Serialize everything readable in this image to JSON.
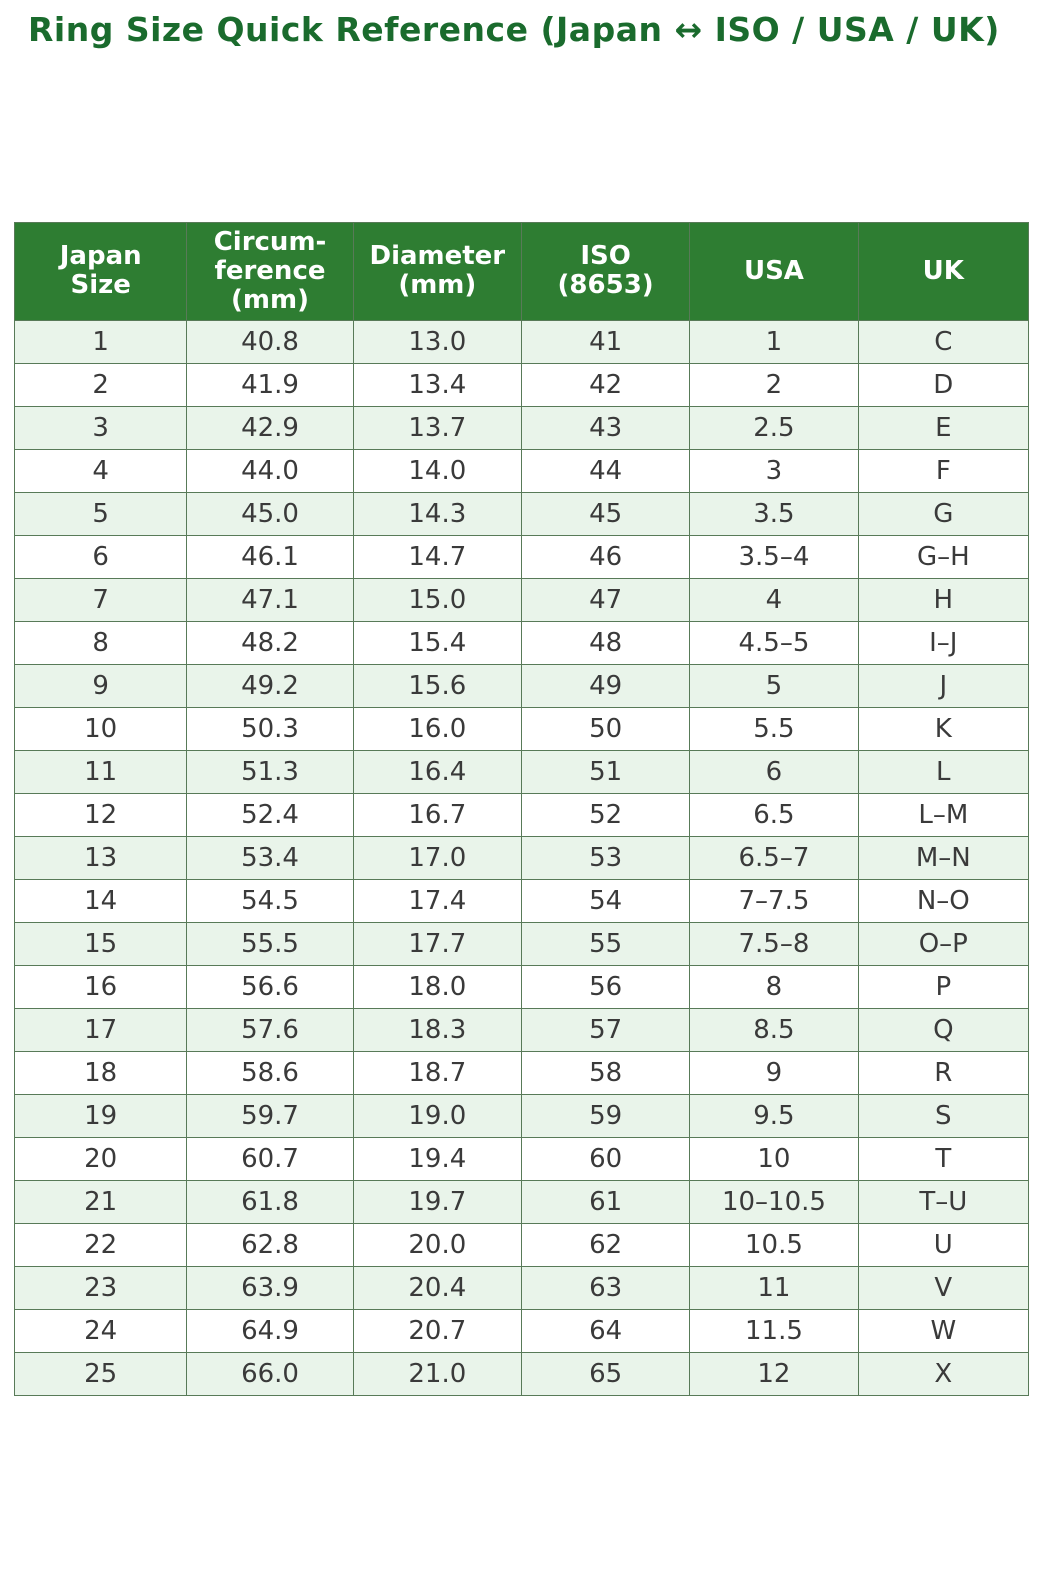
{
  "page": {
    "title": "Ring Size Quick Reference (Japan ↔ ISO / USA / UK)"
  },
  "colors": {
    "title_text": "#1a6b2d",
    "header_bg": "#2e7d32",
    "header_text": "#ffffff",
    "row_alt_bg": "#e9f4ea",
    "row_bg": "#ffffff",
    "border": "#587a58",
    "cell_text": "#3a3a3a"
  },
  "chart_data": {
    "type": "table",
    "title": "Ring Size Quick Reference (Japan ↔ ISO / USA / UK)",
    "columns": [
      "Japan\nSize",
      "Circum-\nference\n(mm)",
      "Diameter\n(mm)",
      "ISO\n(8653)",
      "USA",
      "UK"
    ],
    "rows": [
      [
        "1",
        "40.8",
        "13.0",
        "41",
        "1",
        "C"
      ],
      [
        "2",
        "41.9",
        "13.4",
        "42",
        "2",
        "D"
      ],
      [
        "3",
        "42.9",
        "13.7",
        "43",
        "2.5",
        "E"
      ],
      [
        "4",
        "44.0",
        "14.0",
        "44",
        "3",
        "F"
      ],
      [
        "5",
        "45.0",
        "14.3",
        "45",
        "3.5",
        "G"
      ],
      [
        "6",
        "46.1",
        "14.7",
        "46",
        "3.5–4",
        "G–H"
      ],
      [
        "7",
        "47.1",
        "15.0",
        "47",
        "4",
        "H"
      ],
      [
        "8",
        "48.2",
        "15.4",
        "48",
        "4.5–5",
        "I–J"
      ],
      [
        "9",
        "49.2",
        "15.6",
        "49",
        "5",
        "J"
      ],
      [
        "10",
        "50.3",
        "16.0",
        "50",
        "5.5",
        "K"
      ],
      [
        "11",
        "51.3",
        "16.4",
        "51",
        "6",
        "L"
      ],
      [
        "12",
        "52.4",
        "16.7",
        "52",
        "6.5",
        "L–M"
      ],
      [
        "13",
        "53.4",
        "17.0",
        "53",
        "6.5–7",
        "M–N"
      ],
      [
        "14",
        "54.5",
        "17.4",
        "54",
        "7–7.5",
        "N–O"
      ],
      [
        "15",
        "55.5",
        "17.7",
        "55",
        "7.5–8",
        "O–P"
      ],
      [
        "16",
        "56.6",
        "18.0",
        "56",
        "8",
        "P"
      ],
      [
        "17",
        "57.6",
        "18.3",
        "57",
        "8.5",
        "Q"
      ],
      [
        "18",
        "58.6",
        "18.7",
        "58",
        "9",
        "R"
      ],
      [
        "19",
        "59.7",
        "19.0",
        "59",
        "9.5",
        "S"
      ],
      [
        "20",
        "60.7",
        "19.4",
        "60",
        "10",
        "T"
      ],
      [
        "21",
        "61.8",
        "19.7",
        "61",
        "10–10.5",
        "T–U"
      ],
      [
        "22",
        "62.8",
        "20.0",
        "62",
        "10.5",
        "U"
      ],
      [
        "23",
        "63.9",
        "20.4",
        "63",
        "11",
        "V"
      ],
      [
        "24",
        "64.9",
        "20.7",
        "64",
        "11.5",
        "W"
      ],
      [
        "25",
        "66.0",
        "21.0",
        "65",
        "12",
        "X"
      ]
    ]
  }
}
